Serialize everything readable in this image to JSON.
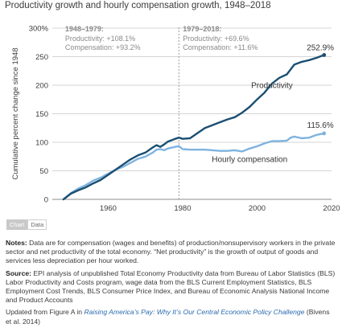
{
  "title": "Productivity growth and hourly compensation growth, 1948–2018",
  "chart_data": {
    "type": "line",
    "title": "Productivity growth and hourly compensation growth, 1948–2018",
    "ylabel": "Cumulative percent change since 1948",
    "xlabel": "",
    "xlim": [
      1945,
      2020
    ],
    "ylim": [
      0,
      300
    ],
    "xticks": [
      "1960",
      "1980",
      "2000",
      "2020"
    ],
    "yticks": [
      "0",
      "50",
      "100",
      "150",
      "200",
      "250",
      "300%"
    ],
    "grid": "horizontal",
    "divider_year": 1979,
    "period_labels": [
      {
        "heading": "1948–1979:",
        "productivity": "Productivity: +108.1%",
        "compensation": "Compensation: +93.2%"
      },
      {
        "heading": "1979–2018:",
        "productivity": "Productivity: +69.6%",
        "compensation": "Compensation: +11.6%"
      }
    ],
    "series": [
      {
        "name": "Productivity",
        "color": "#1b4f72",
        "end_label": "252.9%",
        "x": [
          1948,
          1950,
          1952,
          1954,
          1956,
          1958,
          1960,
          1962,
          1964,
          1966,
          1968,
          1970,
          1972,
          1973,
          1974,
          1975,
          1976,
          1978,
          1979,
          1980,
          1982,
          1984,
          1986,
          1988,
          1990,
          1992,
          1994,
          1996,
          1998,
          2000,
          2002,
          2004,
          2006,
          2008,
          2010,
          2012,
          2014,
          2016,
          2018
        ],
        "values": [
          0,
          10,
          16,
          21,
          28,
          34,
          43,
          52,
          61,
          70,
          77,
          82,
          91,
          95,
          92,
          96,
          101,
          106,
          108.1,
          106,
          107,
          116,
          125,
          130,
          135,
          140,
          144,
          152,
          162,
          175,
          187,
          203,
          213,
          219,
          236,
          241,
          244,
          248,
          252.9
        ]
      },
      {
        "name": "Hourly compensation",
        "color": "#7fb3e0",
        "end_label": "115.6%",
        "x": [
          1948,
          1950,
          1952,
          1954,
          1956,
          1958,
          1960,
          1962,
          1964,
          1966,
          1968,
          1970,
          1972,
          1973,
          1974,
          1975,
          1976,
          1978,
          1979,
          1980,
          1982,
          1984,
          1986,
          1988,
          1990,
          1992,
          1994,
          1996,
          1998,
          2000,
          2002,
          2004,
          2006,
          2008,
          2009,
          2010,
          2012,
          2014,
          2016,
          2018
        ],
        "values": [
          0,
          11,
          19,
          25,
          33,
          38,
          45,
          52,
          57,
          64,
          71,
          75,
          82,
          87,
          88,
          86,
          89,
          92,
          93.2,
          88,
          87,
          87,
          87,
          86,
          85,
          85,
          86,
          84,
          89,
          93,
          98,
          102,
          102,
          103,
          108,
          110,
          107,
          108,
          113,
          115.6
        ]
      }
    ]
  },
  "tabs": {
    "chart": "Chart",
    "data": "Data"
  },
  "notes": {
    "notes_label": "Notes:",
    "notes_text": "Data are for compensation (wages and benefits) of production/nonsupervisory workers in the private sector and net productivity of the total economy. “Net productivity” is the growth of output of goods and services less depreciation per hour worked.",
    "source_label": "Source:",
    "source_text": "EPI analysis of unpublished Total Economy Productivity data from Bureau of Labor Statistics (BLS) Labor Productivity and Costs program, wage data from the BLS Current Employment Statistics, BLS Employment Cost Trends, BLS Consumer Price Index, and Bureau of Economic Analysis National Income and Product Accounts",
    "updated_prefix": "Updated from Figure A in ",
    "updated_link": "Raising America’s Pay: Why It’s Our Central Economic Policy Challenge",
    "updated_suffix": " (Bivens et al. 2014)"
  }
}
